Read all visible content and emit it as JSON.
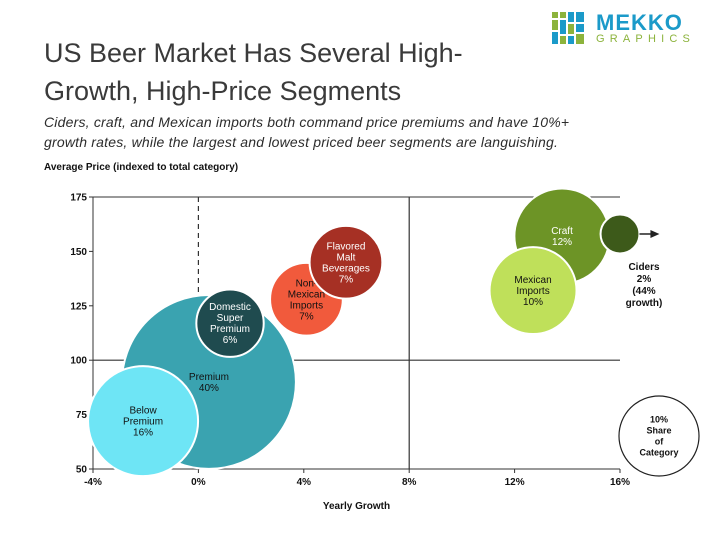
{
  "header": {
    "title_line1": "US Beer Market Has Several High-",
    "title_line2": "Growth, High-Price Segments",
    "subtitle_line1": "Ciders, craft, and Mexican imports both command price premiums and have 10%+",
    "subtitle_line2": "growth rates, while the largest and lowest priced beer segments are languishing.",
    "logo_word1": "MEKKO",
    "logo_word2": "GRAPHICS"
  },
  "colors": {
    "logo_blue": "#1b9ac9",
    "logo_green": "#8cb33c",
    "premium": "#3aa3b0",
    "below_premium": "#6ee5f5",
    "domestic_super_premium": "#1f4b4f",
    "non_mexican_imports": "#f15a3c",
    "flavored_malt_beverages": "#a63024",
    "craft": "#6d9426",
    "mexican_imports": "#bfe05a",
    "ciders": "#3d5a1a"
  },
  "chart_data": {
    "type": "scatter",
    "subtype": "bubble",
    "xlabel": "Yearly Growth",
    "ylabel": "Average Price (indexed to total category)",
    "xlim": [
      -4,
      16
    ],
    "ylim": [
      50,
      175
    ],
    "x_ticks": [
      -4,
      0,
      4,
      8,
      12,
      16
    ],
    "x_tick_labels": [
      "-4%",
      "0%",
      "4%",
      "8%",
      "12%",
      "16%"
    ],
    "y_ticks": [
      50,
      75,
      100,
      125,
      150,
      175
    ],
    "y_tick_labels": [
      "50",
      "75",
      "100",
      "125",
      "150",
      "175"
    ],
    "reference_lines": [
      {
        "axis": "x",
        "value": 0,
        "style": "dashed",
        "range": [
          100,
          175
        ]
      },
      {
        "axis": "x",
        "value": 8,
        "style": "solid"
      },
      {
        "axis": "y",
        "value": 100,
        "style": "solid"
      }
    ],
    "points": [
      {
        "id": "premium",
        "label_lines": [
          "Premium",
          "40%"
        ],
        "x": 0.4,
        "y": 90,
        "share": 40,
        "color_key": "premium",
        "text_color": "#111111"
      },
      {
        "id": "below_premium",
        "label_lines": [
          "Below",
          "Premium",
          "16%"
        ],
        "x": -2.1,
        "y": 72,
        "share": 16,
        "color_key": "below_premium",
        "text_color": "#111111"
      },
      {
        "id": "domestic_super_premium",
        "label_lines": [
          "Domestic",
          "Super",
          "Premium",
          "6%"
        ],
        "x": 1.2,
        "y": 117,
        "share": 6,
        "color_key": "domestic_super_premium",
        "text_color": "#ffffff"
      },
      {
        "id": "non_mexican_imports",
        "label_lines": [
          "Non-",
          "Mexican",
          "Imports",
          "7%"
        ],
        "x": 4.1,
        "y": 128,
        "share": 7,
        "color_key": "non_mexican_imports",
        "text_color": "#111111"
      },
      {
        "id": "flavored_malt_beverages",
        "label_lines": [
          "Flavored",
          "Malt",
          "Beverages",
          "7%"
        ],
        "x": 5.6,
        "y": 145,
        "share": 7,
        "color_key": "flavored_malt_beverages",
        "text_color": "#ffffff"
      },
      {
        "id": "craft",
        "label_lines": [
          "Craft",
          "12%"
        ],
        "x": 13.8,
        "y": 157,
        "share": 12,
        "color_key": "craft",
        "text_color": "#ffffff"
      },
      {
        "id": "mexican_imports",
        "label_lines": [
          "Mexican",
          "Imports",
          "10%"
        ],
        "x": 12.7,
        "y": 132,
        "share": 10,
        "color_key": "mexican_imports",
        "text_color": "#111111"
      },
      {
        "id": "ciders",
        "label_lines": [],
        "x": 16,
        "y": 158,
        "share": 2,
        "color_key": "ciders",
        "text_color": "#ffffff",
        "arrow": true
      }
    ],
    "annotations": {
      "ciders": [
        "Ciders",
        "2%",
        "(44%",
        "growth)"
      ],
      "share_legend": [
        "10%",
        "Share",
        "of",
        "Category"
      ]
    }
  }
}
